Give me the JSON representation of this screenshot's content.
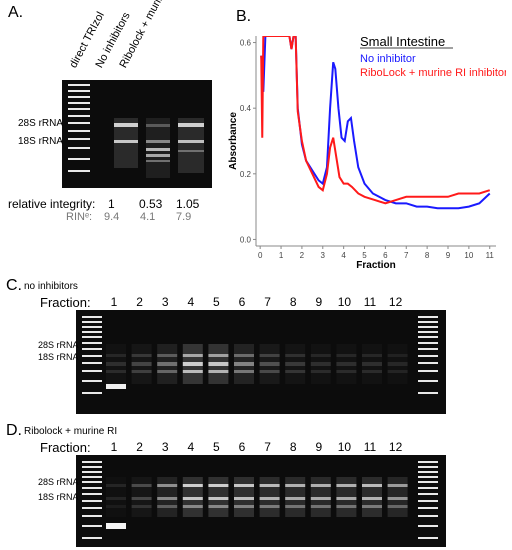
{
  "panelA": {
    "label": "A.",
    "lane_titles": [
      "direct TRIzol",
      "No inhibitors",
      "Ribolock + murine RI"
    ],
    "band_labels": [
      "28S rRNA",
      "18S rRNA"
    ],
    "integrity_label": "relative integrity:",
    "integrity_values": [
      "1",
      "0.53",
      "1.05"
    ],
    "rin_label": "RINᵉ:",
    "rin_values": [
      "9.4",
      "4.1",
      "7.9"
    ]
  },
  "panelB": {
    "label": "B.",
    "title": "Small Intestine",
    "legend": [
      {
        "name": "No inhibitor",
        "color": "#1a1aff"
      },
      {
        "name": "RiboLock + murine RI inhibitor",
        "color": "#ff1a1a"
      }
    ]
  },
  "panelC": {
    "label": "C.",
    "subtitle": "no inhibitors",
    "fraction_label": "Fraction:",
    "lanes": [
      "1",
      "2",
      "3",
      "4",
      "5",
      "6",
      "7",
      "8",
      "9",
      "10",
      "11",
      "12"
    ],
    "band_labels": [
      "28S rRNA",
      "18S rRNA"
    ]
  },
  "panelD": {
    "label": "D.",
    "subtitle": "Ribolock + murine RI",
    "fraction_label": "Fraction:",
    "lanes": [
      "1",
      "2",
      "3",
      "4",
      "5",
      "6",
      "7",
      "8",
      "9",
      "10",
      "11",
      "12"
    ],
    "band_labels": [
      "28S rRNA",
      "18S rRNA"
    ]
  },
  "chart_data": {
    "type": "line",
    "title": "Small Intestine",
    "xlabel": "Fraction",
    "ylabel": "Absorbance",
    "xlim": [
      -0.2,
      11.3
    ],
    "ylim": [
      -0.02,
      0.62
    ],
    "xticks": [
      "0",
      "1",
      "2",
      "3",
      "4",
      "5",
      "6",
      "7",
      "8",
      "9",
      "10",
      "11"
    ],
    "yticks": [
      "0.0",
      "0.2",
      "0.4",
      "0.6"
    ],
    "legend_position": "top-right",
    "series": [
      {
        "name": "No inhibitor",
        "color": "#1a1aff",
        "x": [
          0.05,
          0.1,
          0.15,
          0.25,
          0.35,
          1.4,
          1.5,
          1.6,
          1.7,
          1.8,
          2.0,
          2.2,
          2.5,
          2.8,
          3.0,
          3.2,
          3.35,
          3.5,
          3.6,
          3.75,
          3.9,
          4.05,
          4.2,
          4.35,
          4.5,
          4.7,
          5.0,
          5.4,
          6.0,
          6.5,
          7.0,
          7.5,
          8.0,
          8.5,
          9.0,
          9.5,
          10.0,
          10.5,
          11.0
        ],
        "y": [
          0.56,
          0.52,
          0.45,
          0.62,
          0.62,
          0.62,
          0.58,
          0.62,
          0.62,
          0.4,
          0.29,
          0.24,
          0.21,
          0.18,
          0.17,
          0.22,
          0.4,
          0.54,
          0.52,
          0.4,
          0.31,
          0.3,
          0.36,
          0.37,
          0.3,
          0.22,
          0.17,
          0.14,
          0.12,
          0.11,
          0.11,
          0.1,
          0.1,
          0.095,
          0.095,
          0.095,
          0.1,
          0.11,
          0.14
        ]
      },
      {
        "name": "RiboLock + murine RI inhibitor",
        "color": "#ff1a1a",
        "x": [
          0.05,
          0.1,
          0.15,
          0.25,
          0.35,
          1.4,
          1.5,
          1.6,
          1.7,
          1.8,
          2.0,
          2.2,
          2.5,
          2.8,
          3.0,
          3.2,
          3.35,
          3.5,
          3.65,
          3.8,
          4.0,
          4.2,
          4.4,
          4.7,
          5.0,
          5.5,
          6.0,
          6.5,
          7.0,
          7.5,
          8.0,
          8.5,
          9.0,
          9.5,
          10.0,
          10.5,
          11.0
        ],
        "y": [
          0.56,
          0.31,
          0.62,
          0.62,
          0.62,
          0.62,
          0.58,
          0.62,
          0.62,
          0.39,
          0.3,
          0.24,
          0.2,
          0.16,
          0.15,
          0.2,
          0.28,
          0.31,
          0.25,
          0.19,
          0.17,
          0.17,
          0.16,
          0.14,
          0.13,
          0.12,
          0.11,
          0.12,
          0.13,
          0.13,
          0.13,
          0.13,
          0.13,
          0.14,
          0.14,
          0.14,
          0.15
        ]
      }
    ]
  }
}
